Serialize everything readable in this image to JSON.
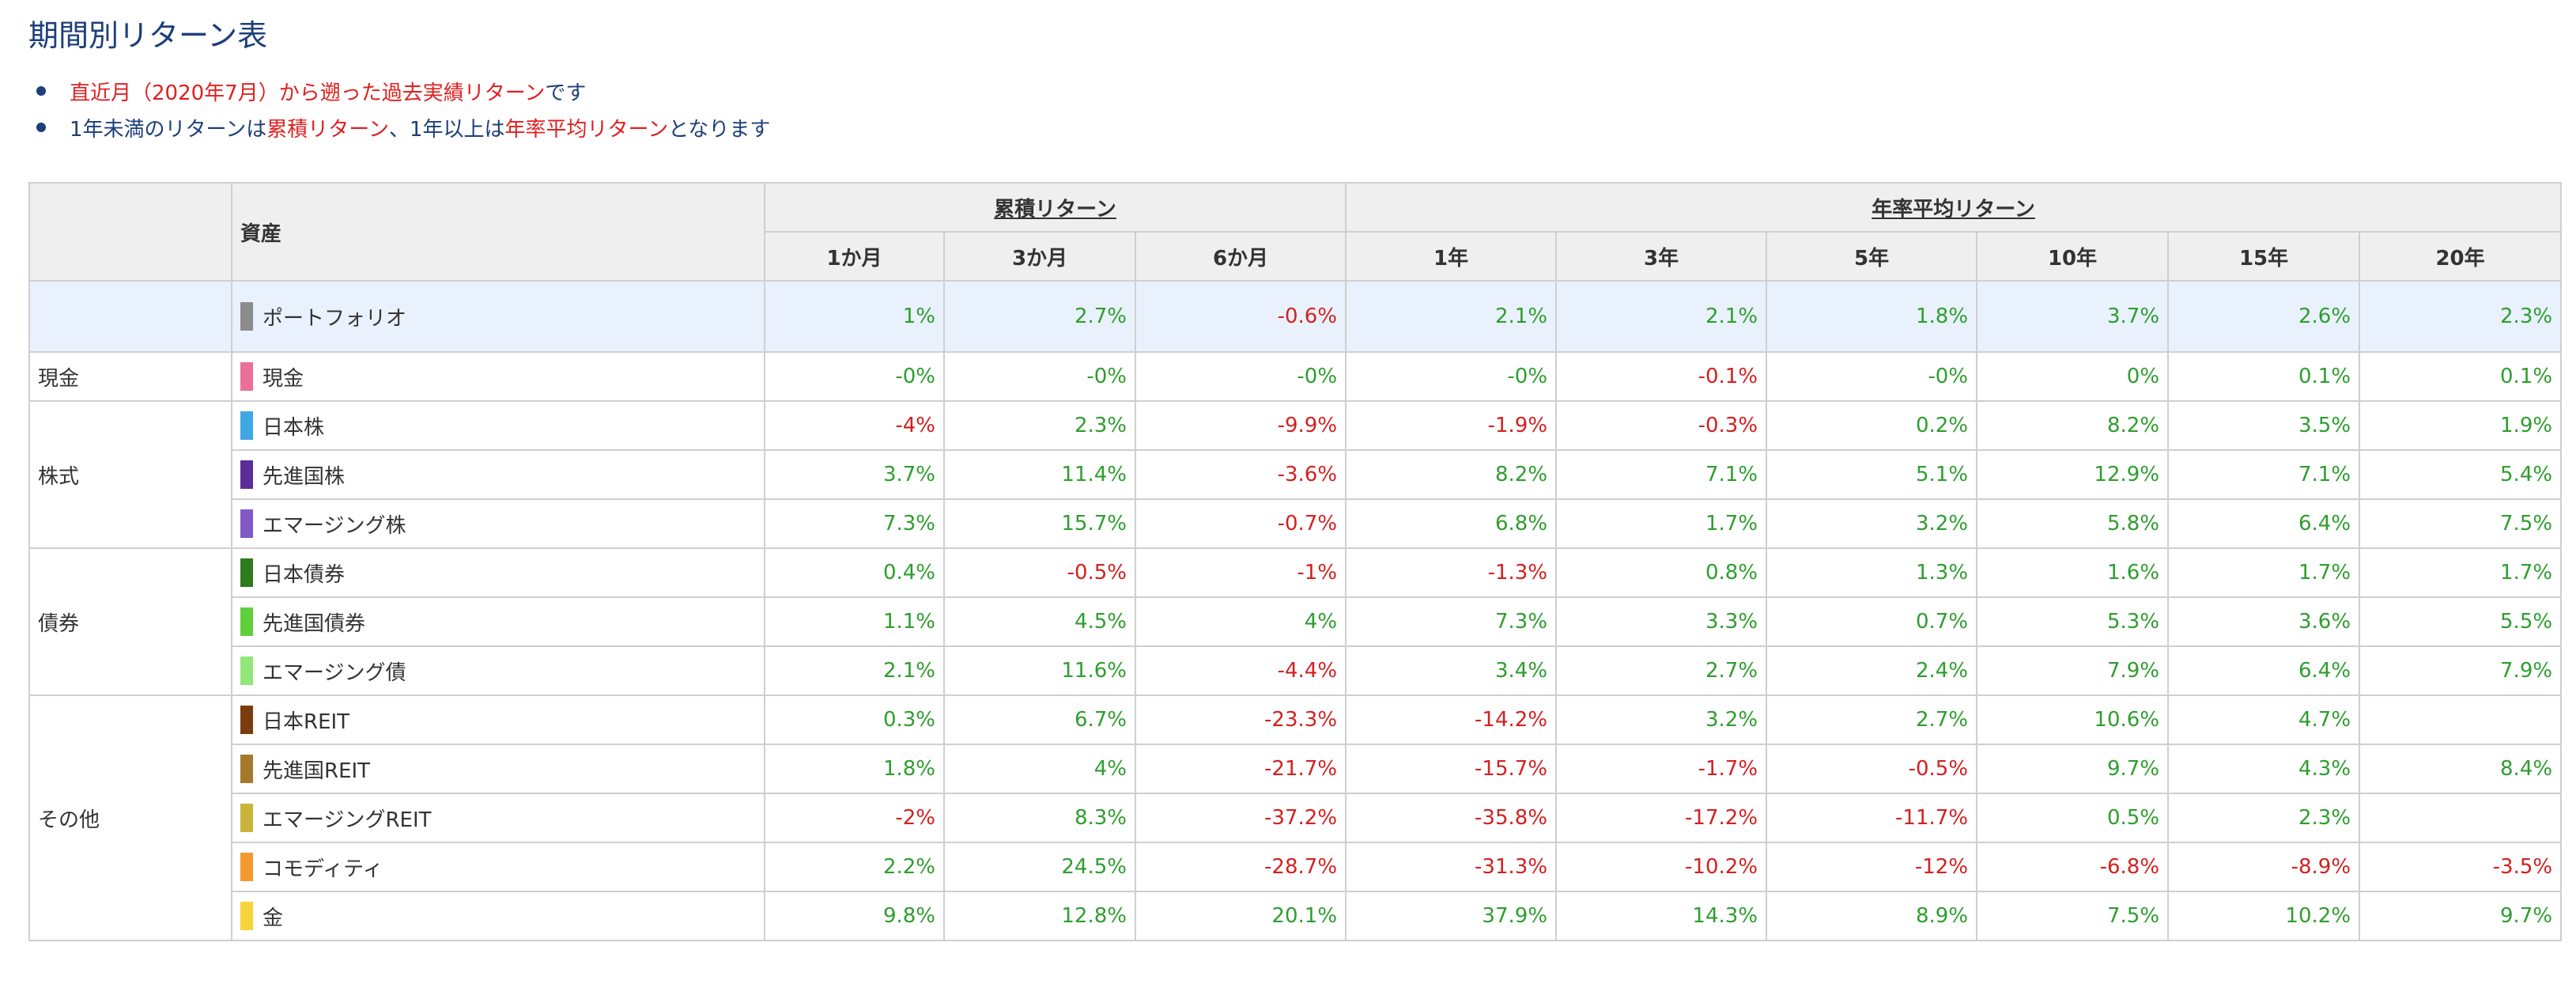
{
  "title": "期間別リターン表",
  "notes": [
    {
      "red": "直近月（2020年7月）から遡った過去実績リターン",
      "tail": "です"
    },
    {
      "p1": "1年未満のリターンは",
      "r1": "累積リターン",
      "p2": "、1年以上は",
      "r2": "年率平均リターン",
      "p3": "となります"
    }
  ],
  "table": {
    "asset_header": "資産",
    "group_cumulative": "累積リターン",
    "group_annual": "年率平均リターン",
    "periods": [
      "1か月",
      "3か月",
      "6か月",
      "1年",
      "3年",
      "5年",
      "10年",
      "15年",
      "20年"
    ],
    "categories": {
      "cash": "現金",
      "stock": "株式",
      "bond": "債券",
      "other": "その他"
    },
    "rows": [
      {
        "name": "ポートフォリオ",
        "color": "#8c8c8c",
        "values": [
          "1%",
          "2.7%",
          "-0.6%",
          "2.1%",
          "2.1%",
          "1.8%",
          "3.7%",
          "2.6%",
          "2.3%"
        ]
      },
      {
        "name": "現金",
        "color": "#ec6f98",
        "values": [
          "-0%",
          "-0%",
          "-0%",
          "-0%",
          "-0.1%",
          "-0%",
          "0%",
          "0.1%",
          "0.1%"
        ]
      },
      {
        "name": "日本株",
        "color": "#3fa7e4",
        "values": [
          "-4%",
          "2.3%",
          "-9.9%",
          "-1.9%",
          "-0.3%",
          "0.2%",
          "8.2%",
          "3.5%",
          "1.9%"
        ]
      },
      {
        "name": "先進国株",
        "color": "#5b2d9a",
        "values": [
          "3.7%",
          "11.4%",
          "-3.6%",
          "8.2%",
          "7.1%",
          "5.1%",
          "12.9%",
          "7.1%",
          "5.4%"
        ]
      },
      {
        "name": "エマージング株",
        "color": "#8058c8",
        "values": [
          "7.3%",
          "15.7%",
          "-0.7%",
          "6.8%",
          "1.7%",
          "3.2%",
          "5.8%",
          "6.4%",
          "7.5%"
        ]
      },
      {
        "name": "日本債券",
        "color": "#2f7a1c",
        "values": [
          "0.4%",
          "-0.5%",
          "-1%",
          "-1.3%",
          "0.8%",
          "1.3%",
          "1.6%",
          "1.7%",
          "1.7%"
        ]
      },
      {
        "name": "先進国債券",
        "color": "#5fcf3b",
        "values": [
          "1.1%",
          "4.5%",
          "4%",
          "7.3%",
          "3.3%",
          "0.7%",
          "5.3%",
          "3.6%",
          "5.5%"
        ]
      },
      {
        "name": "エマージング債",
        "color": "#92e67a",
        "values": [
          "2.1%",
          "11.6%",
          "-4.4%",
          "3.4%",
          "2.7%",
          "2.4%",
          "7.9%",
          "6.4%",
          "7.9%"
        ]
      },
      {
        "name": "日本REIT",
        "color": "#7a3d10",
        "values": [
          "0.3%",
          "6.7%",
          "-23.3%",
          "-14.2%",
          "3.2%",
          "2.7%",
          "10.6%",
          "4.7%",
          ""
        ]
      },
      {
        "name": "先進国REIT",
        "color": "#a6782c",
        "values": [
          "1.8%",
          "4%",
          "-21.7%",
          "-15.7%",
          "-1.7%",
          "-0.5%",
          "9.7%",
          "4.3%",
          "8.4%"
        ]
      },
      {
        "name": "エマージングREIT",
        "color": "#c8b43a",
        "values": [
          "-2%",
          "8.3%",
          "-37.2%",
          "-35.8%",
          "-17.2%",
          "-11.7%",
          "0.5%",
          "2.3%",
          ""
        ]
      },
      {
        "name": "コモディティ",
        "color": "#f39a2e",
        "values": [
          "2.2%",
          "24.5%",
          "-28.7%",
          "-31.3%",
          "-10.2%",
          "-12%",
          "-6.8%",
          "-8.9%",
          "-3.5%"
        ]
      },
      {
        "name": "金",
        "color": "#f5d33a",
        "values": [
          "9.8%",
          "12.8%",
          "20.1%",
          "37.9%",
          "14.3%",
          "8.9%",
          "7.5%",
          "10.2%",
          "9.7%"
        ]
      }
    ]
  }
}
